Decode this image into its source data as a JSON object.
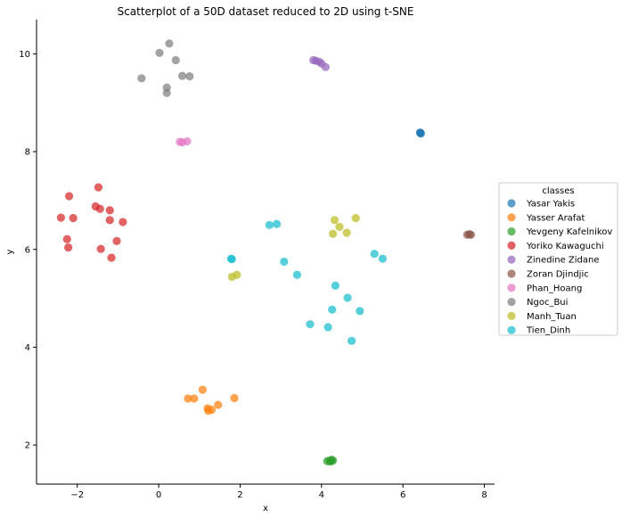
{
  "chart_data": {
    "type": "scatter",
    "title": "Scatterplot of a 50D dataset reduced to 2D using t-SNE",
    "xlabel": "x",
    "ylabel": "y",
    "xlim": [
      -3.0,
      8.25
    ],
    "ylim": [
      1.2,
      10.7
    ],
    "xticks": [
      -2,
      0,
      2,
      4,
      6,
      8
    ],
    "yticks": [
      2,
      4,
      6,
      8,
      10
    ],
    "grid": false,
    "legend": {
      "title": "classes",
      "position": "right"
    },
    "series": [
      {
        "name": "Yasar Yakis",
        "color": "#1f77b4",
        "points": [
          [
            6.42,
            8.39
          ],
          [
            6.44,
            8.37
          ],
          [
            6.43,
            8.38
          ]
        ]
      },
      {
        "name": "Yasser Arafat",
        "color": "#ff7f0e",
        "points": [
          [
            0.72,
            2.95
          ],
          [
            0.87,
            2.95
          ],
          [
            1.08,
            3.13
          ],
          [
            1.2,
            2.75
          ],
          [
            1.22,
            2.7
          ],
          [
            1.3,
            2.72
          ],
          [
            1.46,
            2.82
          ],
          [
            1.86,
            2.96
          ]
        ]
      },
      {
        "name": "Yevgeny Kafelnikov",
        "color": "#2ca02c",
        "points": [
          [
            4.14,
            1.67
          ],
          [
            4.2,
            1.68
          ],
          [
            4.25,
            1.7
          ],
          [
            4.28,
            1.68
          ],
          [
            4.22,
            1.66
          ]
        ]
      },
      {
        "name": "Yoriko Kawaguchi",
        "color": "#d62728",
        "points": [
          [
            -2.4,
            6.65
          ],
          [
            -2.2,
            7.09
          ],
          [
            -2.1,
            6.64
          ],
          [
            -2.25,
            6.21
          ],
          [
            -2.22,
            6.04
          ],
          [
            -1.55,
            6.88
          ],
          [
            -1.48,
            7.27
          ],
          [
            -1.44,
            6.83
          ],
          [
            -1.2,
            6.8
          ],
          [
            -1.2,
            6.6
          ],
          [
            -0.88,
            6.56
          ],
          [
            -1.42,
            6.01
          ],
          [
            -1.03,
            6.17
          ],
          [
            -1.16,
            5.83
          ]
        ]
      },
      {
        "name": "Zinedine Zidane",
        "color": "#9467bd",
        "points": [
          [
            3.8,
            9.87
          ],
          [
            3.86,
            9.86
          ],
          [
            3.94,
            9.84
          ],
          [
            4.0,
            9.8
          ],
          [
            4.1,
            9.73
          ]
        ]
      },
      {
        "name": "Zoran Djindjic",
        "color": "#8c564b",
        "points": [
          [
            7.58,
            6.3
          ],
          [
            7.63,
            6.31
          ],
          [
            7.67,
            6.3
          ]
        ]
      },
      {
        "name": "Phan_Hoang",
        "color": "#e377c2",
        "points": [
          [
            0.52,
            8.2
          ],
          [
            0.58,
            8.19
          ],
          [
            0.7,
            8.21
          ]
        ]
      },
      {
        "name": "Ngoc_Bui",
        "color": "#7f7f7f",
        "points": [
          [
            0.02,
            10.02
          ],
          [
            0.26,
            10.21
          ],
          [
            0.42,
            9.87
          ],
          [
            -0.42,
            9.5
          ],
          [
            0.2,
            9.31
          ],
          [
            0.2,
            9.2
          ],
          [
            0.58,
            9.55
          ],
          [
            0.76,
            9.54
          ]
        ]
      },
      {
        "name": "Manh_Tuan",
        "color": "#bcbd22",
        "points": [
          [
            4.32,
            6.6
          ],
          [
            4.44,
            6.46
          ],
          [
            4.84,
            6.64
          ],
          [
            4.28,
            6.32
          ],
          [
            4.62,
            6.34
          ],
          [
            1.8,
            5.44
          ],
          [
            1.92,
            5.48
          ]
        ]
      },
      {
        "name": "Tien_Dinh",
        "color": "#17becf",
        "points": [
          [
            2.72,
            6.5
          ],
          [
            2.9,
            6.52
          ],
          [
            1.78,
            5.81
          ],
          [
            1.8,
            5.8
          ],
          [
            3.08,
            5.75
          ],
          [
            3.4,
            5.48
          ],
          [
            5.3,
            5.91
          ],
          [
            5.5,
            5.81
          ],
          [
            4.34,
            5.26
          ],
          [
            4.64,
            5.01
          ],
          [
            4.26,
            4.77
          ],
          [
            4.94,
            4.74
          ],
          [
            3.72,
            4.47
          ],
          [
            4.16,
            4.41
          ],
          [
            4.74,
            4.13
          ]
        ]
      }
    ]
  }
}
